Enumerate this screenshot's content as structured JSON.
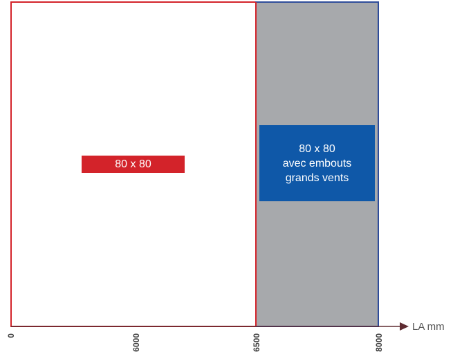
{
  "zones": [
    {
      "label": "80 x 80",
      "fill": "#ffffff",
      "border": "#d3232a",
      "label_color": "#d3232a"
    },
    {
      "label_lines": [
        "80 x 80",
        "avec embouts",
        "grands vents"
      ],
      "fill": "#a7a9ac",
      "border": "#2e4c9a",
      "label_color": "#0f58a8"
    }
  ],
  "axis": {
    "label": "LA mm",
    "ticks": [
      "0",
      "6000",
      "6500",
      "8000"
    ],
    "color": "#5e2b31"
  }
}
